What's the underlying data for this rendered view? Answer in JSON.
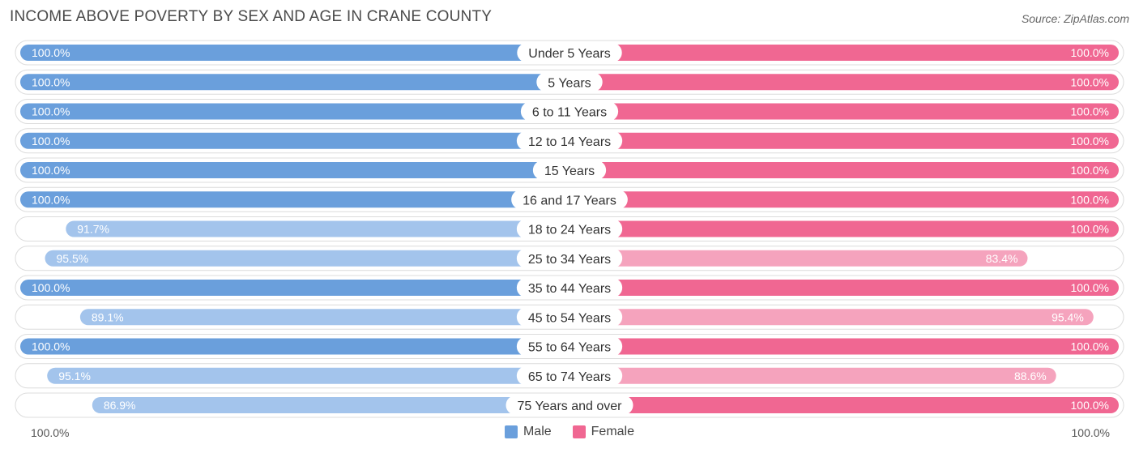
{
  "header": {
    "title": "INCOME ABOVE POVERTY BY SEX AND AGE IN CRANE COUNTY",
    "source": "Source: ZipAtlas.com"
  },
  "axis": {
    "left_tick": "100.0%",
    "right_tick": "100.0%"
  },
  "legend": {
    "male_label": "Male",
    "female_label": "Female"
  },
  "colors": {
    "male_full": "#6a9fdc",
    "male_light": "#a3c4ec",
    "female_full": "#f06792",
    "female_light": "#f5a3bd",
    "row_bg": "#f2f2f2"
  },
  "chart_data": {
    "type": "bar",
    "orientation": "horizontal-diverging",
    "title": "INCOME ABOVE POVERTY BY SEX AND AGE IN CRANE COUNTY",
    "xlim": [
      -100,
      100
    ],
    "unit": "%",
    "categories": [
      "Under 5 Years",
      "5 Years",
      "6 to 11 Years",
      "12 to 14 Years",
      "15 Years",
      "16 and 17 Years",
      "18 to 24 Years",
      "25 to 34 Years",
      "35 to 44 Years",
      "45 to 54 Years",
      "55 to 64 Years",
      "65 to 74 Years",
      "75 Years and over"
    ],
    "series": [
      {
        "name": "Male",
        "values": [
          100.0,
          100.0,
          100.0,
          100.0,
          100.0,
          100.0,
          91.7,
          95.5,
          100.0,
          89.1,
          100.0,
          95.1,
          86.9
        ],
        "labels": [
          "100.0%",
          "100.0%",
          "100.0%",
          "100.0%",
          "100.0%",
          "100.0%",
          "91.7%",
          "95.5%",
          "100.0%",
          "89.1%",
          "100.0%",
          "95.1%",
          "86.9%"
        ]
      },
      {
        "name": "Female",
        "values": [
          100.0,
          100.0,
          100.0,
          100.0,
          100.0,
          100.0,
          100.0,
          83.4,
          100.0,
          95.4,
          100.0,
          88.6,
          100.0
        ],
        "labels": [
          "100.0%",
          "100.0%",
          "100.0%",
          "100.0%",
          "100.0%",
          "100.0%",
          "100.0%",
          "83.4%",
          "100.0%",
          "95.4%",
          "100.0%",
          "88.6%",
          "100.0%"
        ]
      }
    ]
  }
}
